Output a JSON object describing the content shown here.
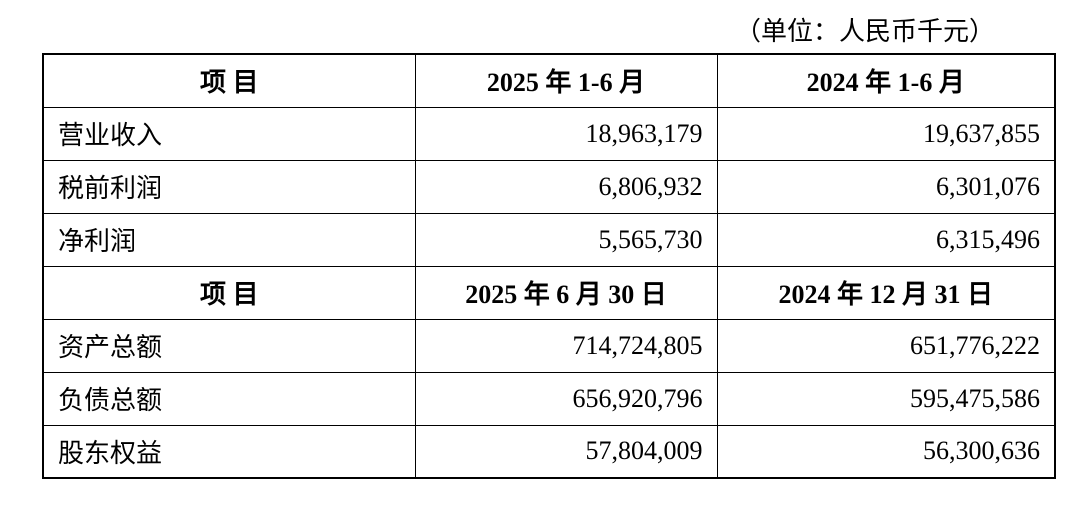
{
  "unit_note": "（单位：人民币千元）",
  "table": {
    "sections": [
      {
        "header": [
          "项 目",
          "2025 年 1-6 月",
          "2024 年 1-6 月"
        ],
        "rows": [
          [
            "营业收入",
            "18,963,179",
            "19,637,855"
          ],
          [
            "税前利润",
            "6,806,932",
            "6,301,076"
          ],
          [
            "净利润",
            "5,565,730",
            "6,315,496"
          ]
        ]
      },
      {
        "header": [
          "项 目",
          "2025 年 6 月 30 日",
          "2024 年 12 月 31 日"
        ],
        "rows": [
          [
            "资产总额",
            "714,724,805",
            "651,776,222"
          ],
          [
            "负债总额",
            "656,920,796",
            "595,475,586"
          ],
          [
            "股东权益",
            "57,804,009",
            "56,300,636"
          ]
        ]
      }
    ]
  }
}
